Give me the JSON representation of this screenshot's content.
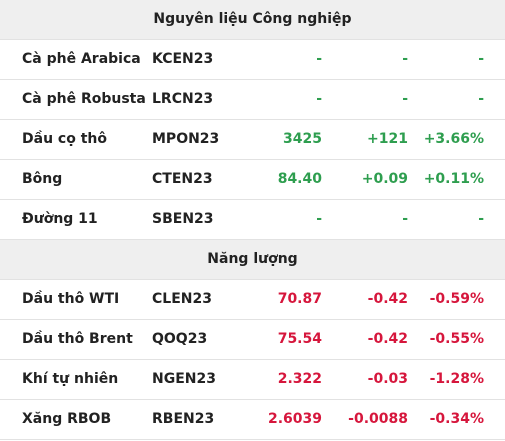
{
  "sections": [
    {
      "title": "Nguyên liệu Công nghiệp",
      "rows": [
        {
          "cells": [
            "Cà phê Arabica",
            "KCEN23",
            "-",
            "-",
            "-"
          ],
          "color": "#2e9e4f"
        },
        {
          "cells": [
            "Cà phê Robusta",
            "LRCN23",
            "-",
            "-",
            "-"
          ],
          "color": "#2e9e4f"
        },
        {
          "cells": [
            "Dầu cọ thô",
            "MPON23",
            "3425",
            "+121",
            "+3.66%"
          ],
          "color": "#2e9e4f"
        },
        {
          "cells": [
            "Bông",
            "CTEN23",
            "84.40",
            "+0.09",
            "+0.11%"
          ],
          "color": "#2e9e4f"
        },
        {
          "cells": [
            "Đường 11",
            "SBEN23",
            "-",
            "-",
            "-"
          ],
          "color": "#2e9e4f"
        }
      ]
    },
    {
      "title": "Năng lượng",
      "rows": [
        {
          "cells": [
            "Dầu thô WTI",
            "CLEN23",
            "70.87",
            "-0.42",
            "-0.59%"
          ],
          "color": "#d6163c"
        },
        {
          "cells": [
            "Dầu thô Brent",
            "QOQ23",
            "75.54",
            "-0.42",
            "-0.55%"
          ],
          "color": "#d6163c"
        },
        {
          "cells": [
            "Khí tự nhiên",
            "NGEN23",
            "2.322",
            "-0.03",
            "-1.28%"
          ],
          "color": "#d6163c"
        },
        {
          "cells": [
            "Xăng RBOB",
            "RBEN23",
            "2.6039",
            "-0.0088",
            "-0.34%"
          ],
          "color": "#d6163c"
        }
      ]
    }
  ]
}
